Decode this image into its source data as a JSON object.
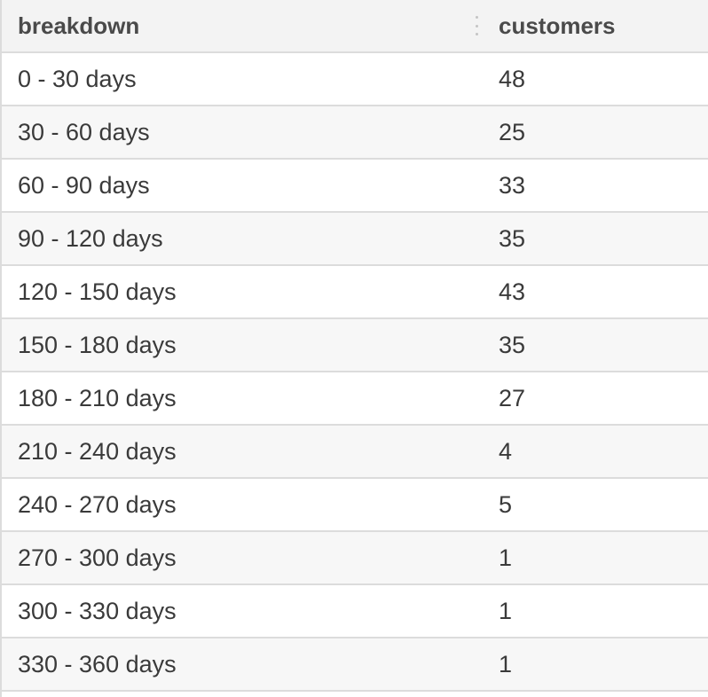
{
  "table": {
    "columns": [
      "breakdown",
      "customers"
    ],
    "rows": [
      {
        "breakdown": "0 - 30 days",
        "customers": "48"
      },
      {
        "breakdown": "30 - 60 days",
        "customers": "25"
      },
      {
        "breakdown": "60 - 90 days",
        "customers": "33"
      },
      {
        "breakdown": "90 - 120 days",
        "customers": "35"
      },
      {
        "breakdown": "120 - 150 days",
        "customers": "43"
      },
      {
        "breakdown": "150 - 180 days",
        "customers": "35"
      },
      {
        "breakdown": "180 - 210 days",
        "customers": "27"
      },
      {
        "breakdown": "210 - 240 days",
        "customers": "4"
      },
      {
        "breakdown": "240 - 270 days",
        "customers": "5"
      },
      {
        "breakdown": "270 - 300 days",
        "customers": "1"
      },
      {
        "breakdown": "300 - 330 days",
        "customers": "1"
      },
      {
        "breakdown": "330 - 360 days",
        "customers": "1"
      }
    ]
  }
}
